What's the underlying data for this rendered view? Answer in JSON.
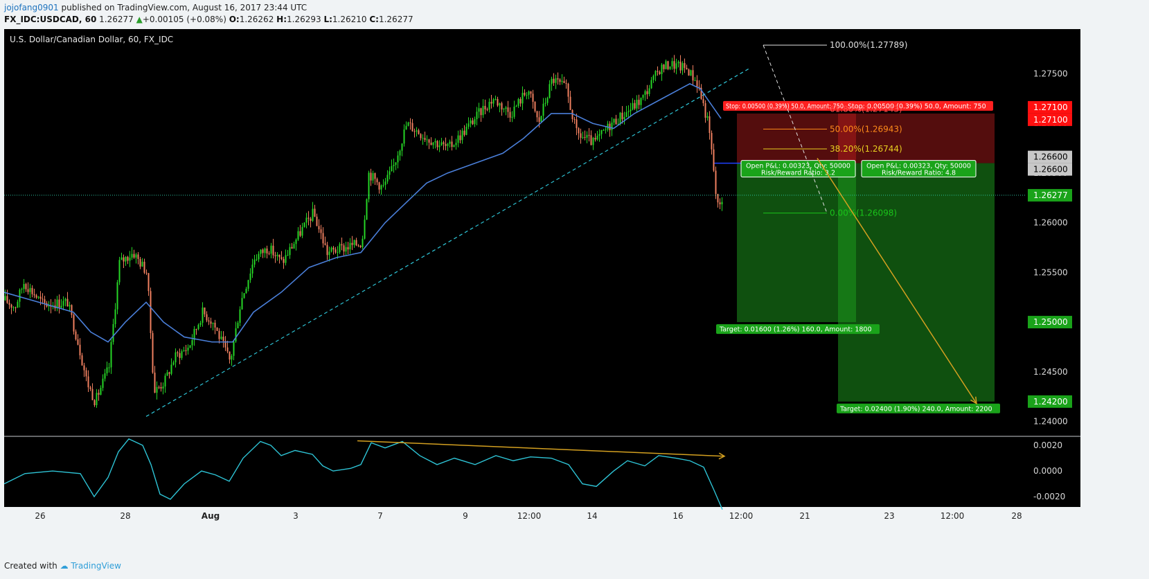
{
  "header": {
    "user": "jojofang0901",
    "published": " published on TradingView.com, August 16, 2017 23:44 UTC",
    "symbol": "FX_IDC:USDCAD, 60",
    "last": "1.26277",
    "change": "+0.00105 (+0.08%)",
    "o_label": "O:",
    "o": "1.26262",
    "h_label": "H:",
    "h": "1.26293",
    "l_label": "L:",
    "l": "1.26210",
    "c_label": "C:",
    "c": "1.26277"
  },
  "footer": {
    "created": "Created with",
    "brand": "TradingView"
  },
  "colors": {
    "background": "#000000",
    "bull": "#26d626",
    "bear": "#f08060",
    "ma": "#4a7fd9",
    "trend": "#2ec4d6",
    "oscillator": "#2ec4d6",
    "divergence": "#d4a020",
    "stop": "#ff2020",
    "target": "#1aa31a"
  },
  "chart_data": [
    {
      "type": "candlestick",
      "title": "U.S. Dollar/Canadian Dollar, 60, FX_IDC",
      "ylim": [
        1.2385,
        1.2795
      ],
      "y_ticks": [
        "1.27500",
        "1.27000",
        "1.26500",
        "1.26000",
        "1.25500",
        "1.25000",
        "1.24500",
        "1.24000"
      ],
      "x_ticks": [
        "26",
        "28",
        "Aug",
        "3",
        "7",
        "9",
        "12:00",
        "14",
        "16",
        "12:00",
        "21",
        "23",
        "12:00",
        "28"
      ],
      "price_labels": [
        "1.27100",
        "1.27100",
        "1.26600",
        "1.26600",
        "1.26277",
        "1.25000",
        "1.24200"
      ],
      "last_price": 1.26277,
      "close_path": [
        [
          0,
          1.2522
        ],
        [
          14,
          1.2515
        ],
        [
          27,
          1.254
        ],
        [
          55,
          1.2518
        ],
        [
          90,
          1.252
        ],
        [
          105,
          1.248
        ],
        [
          118,
          1.244
        ],
        [
          130,
          1.242
        ],
        [
          150,
          1.2455
        ],
        [
          165,
          1.256
        ],
        [
          185,
          1.257
        ],
        [
          205,
          1.255
        ],
        [
          215,
          1.243
        ],
        [
          230,
          1.244
        ],
        [
          245,
          1.2465
        ],
        [
          265,
          1.2475
        ],
        [
          285,
          1.251
        ],
        [
          300,
          1.25
        ],
        [
          325,
          1.246
        ],
        [
          340,
          1.252
        ],
        [
          360,
          1.2565
        ],
        [
          380,
          1.2575
        ],
        [
          400,
          1.256
        ],
        [
          430,
          1.2595
        ],
        [
          445,
          1.261
        ],
        [
          465,
          1.257
        ],
        [
          490,
          1.2575
        ],
        [
          515,
          1.258
        ],
        [
          525,
          1.265
        ],
        [
          545,
          1.2635
        ],
        [
          560,
          1.2655
        ],
        [
          580,
          1.27
        ],
        [
          610,
          1.2685
        ],
        [
          640,
          1.2675
        ],
        [
          660,
          1.269
        ],
        [
          690,
          1.2715
        ],
        [
          705,
          1.2725
        ],
        [
          730,
          1.271
        ],
        [
          755,
          1.2735
        ],
        [
          770,
          1.27
        ],
        [
          790,
          1.2745
        ],
        [
          810,
          1.2735
        ],
        [
          825,
          1.269
        ],
        [
          850,
          1.268
        ],
        [
          875,
          1.27
        ],
        [
          895,
          1.271
        ],
        [
          920,
          1.2725
        ],
        [
          945,
          1.2755
        ],
        [
          960,
          1.276
        ],
        [
          985,
          1.2755
        ],
        [
          1000,
          1.274
        ],
        [
          1015,
          1.27
        ],
        [
          1022,
          1.266
        ],
        [
          1028,
          1.2615
        ],
        [
          1037,
          1.2628
        ]
      ],
      "moving_average": [
        [
          0,
          1.253
        ],
        [
          50,
          1.252
        ],
        [
          100,
          1.251
        ],
        [
          125,
          1.249
        ],
        [
          150,
          1.248
        ],
        [
          175,
          1.25
        ],
        [
          205,
          1.252
        ],
        [
          230,
          1.25
        ],
        [
          260,
          1.2485
        ],
        [
          300,
          1.248
        ],
        [
          330,
          1.248
        ],
        [
          360,
          1.251
        ],
        [
          400,
          1.253
        ],
        [
          440,
          1.2555
        ],
        [
          480,
          1.2565
        ],
        [
          515,
          1.257
        ],
        [
          550,
          1.26
        ],
        [
          580,
          1.262
        ],
        [
          610,
          1.264
        ],
        [
          640,
          1.265
        ],
        [
          680,
          1.266
        ],
        [
          720,
          1.267
        ],
        [
          750,
          1.2685
        ],
        [
          790,
          1.271
        ],
        [
          820,
          1.271
        ],
        [
          850,
          1.27
        ],
        [
          880,
          1.2695
        ],
        [
          910,
          1.271
        ],
        [
          950,
          1.2725
        ],
        [
          990,
          1.274
        ],
        [
          1005,
          1.2735
        ],
        [
          1020,
          1.272
        ],
        [
          1035,
          1.2705
        ]
      ],
      "trendlines": [
        {
          "from": [
            205,
            1.2405
          ],
          "to": [
            1075,
            1.2755
          ],
          "style": "dashed"
        }
      ],
      "fibonacci": {
        "levels": [
          {
            "label": "100.00%(1.27789)",
            "value": 1.27789
          },
          {
            "label": "61.80%(1.27143)",
            "value": 1.27143
          },
          {
            "label": "50.00%(1.26943)",
            "value": 1.26943
          },
          {
            "label": "38.20%(1.26744)",
            "value": 1.26744
          },
          {
            "label": "0.00%(1.26098)",
            "value": 1.26098
          }
        ]
      },
      "positions": [
        {
          "entry": 1.266,
          "stop_price": 1.271,
          "target_price": 1.25,
          "stop_text": "Stop: 0.00500 (0.39%) 50.0, Amount: 750",
          "pnl_text": "Open P&L: 0.00323, Qty: 50000",
          "rr_text": "Risk/Reward Ratio: 3.2",
          "target_text": "Target: 0.01600 (1.26%) 160.0, Amount: 1800"
        },
        {
          "entry": 1.266,
          "stop_price": 1.271,
          "target_price": 1.242,
          "stop_text": "Stop: 0.00500 (0.39%) 50.0, Amount: 750",
          "pnl_text": "Open P&L: 0.00323, Qty: 50000",
          "rr_text": "Risk/Reward Ratio: 4.8",
          "target_text": "Target: 0.02400 (1.90%) 240.0, Amount: 2200"
        }
      ],
      "forecast_arrow": {
        "from": 1.2665,
        "to": 1.2418
      }
    },
    {
      "type": "line",
      "ylim": [
        -0.0028,
        0.0027
      ],
      "y_ticks": [
        "0.0020",
        "0.0000",
        "-0.0020"
      ],
      "series": [
        {
          "values": [
            [
              0,
              -0.001
            ],
            [
              30,
              -0.0002
            ],
            [
              70,
              0.0
            ],
            [
              110,
              -0.0002
            ],
            [
              130,
              -0.002
            ],
            [
              150,
              -0.0005
            ],
            [
              165,
              0.0015
            ],
            [
              180,
              0.0025
            ],
            [
              200,
              0.002
            ],
            [
              212,
              0.0005
            ],
            [
              225,
              -0.0018
            ],
            [
              240,
              -0.0022
            ],
            [
              260,
              -0.001
            ],
            [
              285,
              0.0
            ],
            [
              305,
              -0.0003
            ],
            [
              325,
              -0.0008
            ],
            [
              345,
              0.001
            ],
            [
              370,
              0.0023
            ],
            [
              385,
              0.002
            ],
            [
              400,
              0.0012
            ],
            [
              420,
              0.0016
            ],
            [
              445,
              0.0013
            ],
            [
              460,
              0.0004
            ],
            [
              475,
              0.0
            ],
            [
              500,
              0.0002
            ],
            [
              515,
              0.0005
            ],
            [
              530,
              0.0022
            ],
            [
              550,
              0.0018
            ],
            [
              575,
              0.0023
            ],
            [
              600,
              0.0012
            ],
            [
              625,
              0.0005
            ],
            [
              650,
              0.001
            ],
            [
              680,
              0.0005
            ],
            [
              710,
              0.0012
            ],
            [
              735,
              0.0008
            ],
            [
              760,
              0.0011
            ],
            [
              790,
              0.001
            ],
            [
              815,
              0.0005
            ],
            [
              835,
              -0.001
            ],
            [
              855,
              -0.0012
            ],
            [
              880,
              0.0
            ],
            [
              900,
              0.0008
            ],
            [
              925,
              0.0004
            ],
            [
              945,
              0.0012
            ],
            [
              970,
              0.001
            ],
            [
              990,
              0.0008
            ],
            [
              1010,
              0.0003
            ],
            [
              1025,
              -0.0015
            ],
            [
              1037,
              -0.003
            ]
          ]
        }
      ],
      "divergence_line": {
        "from": [
          510,
          0.00235
        ],
        "to": [
          1040,
          0.00115
        ]
      }
    }
  ]
}
